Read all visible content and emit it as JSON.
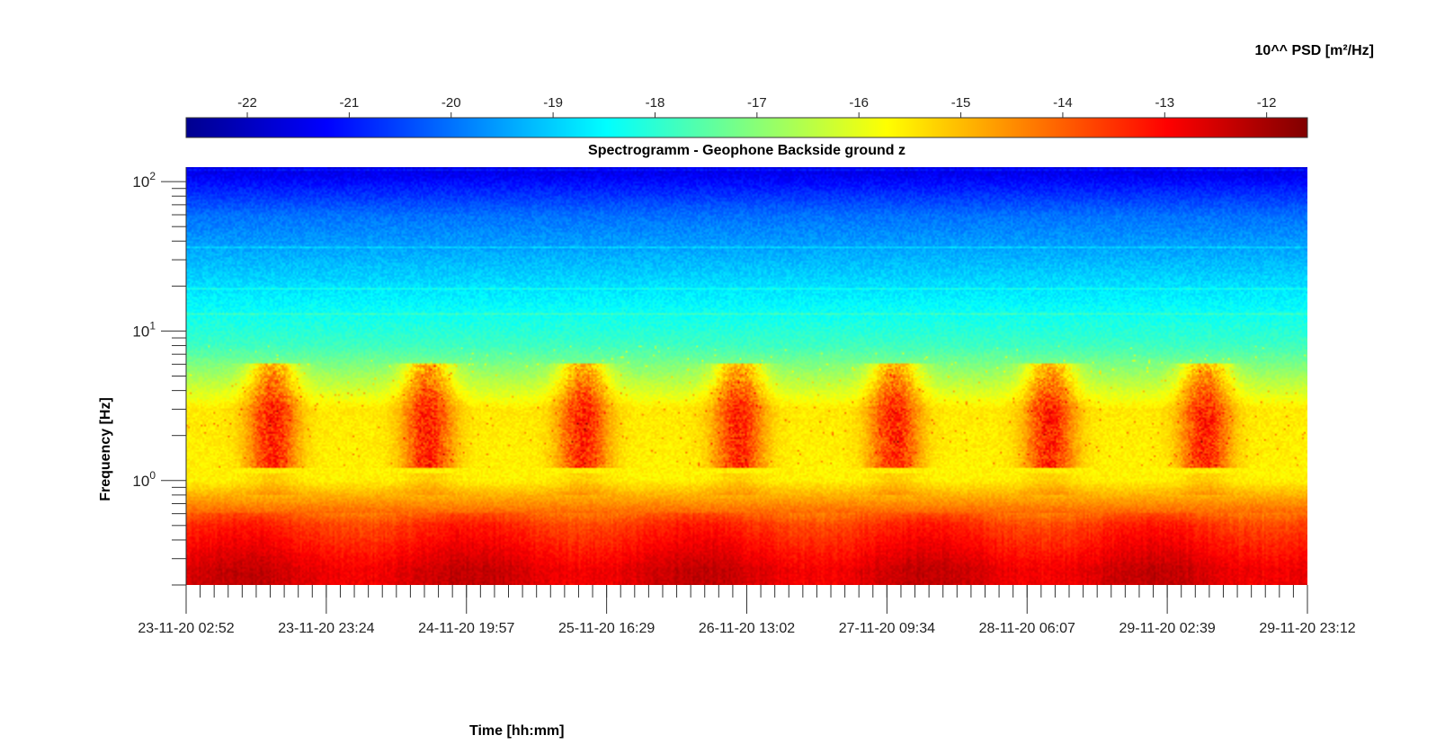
{
  "chart_data": {
    "type": "heatmap",
    "title": "Spectrogramm - Geophone Backside ground z",
    "xlabel": "Time [hh:mm]",
    "ylabel": "Frequency [Hz]",
    "x_ticks": [
      "23-11-20 02:52",
      "23-11-20 23:24",
      "24-11-20 19:57",
      "25-11-20 16:29",
      "26-11-20 13:02",
      "27-11-20 09:34",
      "28-11-20 06:07",
      "29-11-20 02:39",
      "29-11-20 23:12"
    ],
    "y_scale": "log",
    "y_ticks": [
      {
        "base": "10",
        "exp": "0"
      },
      {
        "base": "10",
        "exp": "1"
      },
      {
        "base": "10",
        "exp": "2"
      }
    ],
    "ylim": [
      0.2,
      125
    ],
    "colorbar": {
      "label": "10^^ PSD [m²/Hz]",
      "ticks": [
        "-22",
        "-21",
        "-20",
        "-19",
        "-18",
        "-17",
        "-16",
        "-15",
        "-14",
        "-13",
        "-12"
      ],
      "range": [
        -22.6,
        -11.6
      ],
      "colormap": "jet"
    },
    "grid": false,
    "approx_psd_log10_profile": [
      {
        "freq_hz": 120,
        "psd": -21.5
      },
      {
        "freq_hz": 60,
        "psd": -20.0
      },
      {
        "freq_hz": 20,
        "psd": -18.8
      },
      {
        "freq_hz": 8,
        "psd": -17.8
      },
      {
        "freq_hz": 3,
        "psd": -15.5
      },
      {
        "freq_hz": 1,
        "psd": -15.6
      },
      {
        "freq_hz": 0.5,
        "psd": -13.5
      },
      {
        "freq_hz": 0.25,
        "psd": -12.6
      }
    ],
    "daytime_activity_bands_hz": [
      1.2,
      6
    ]
  }
}
